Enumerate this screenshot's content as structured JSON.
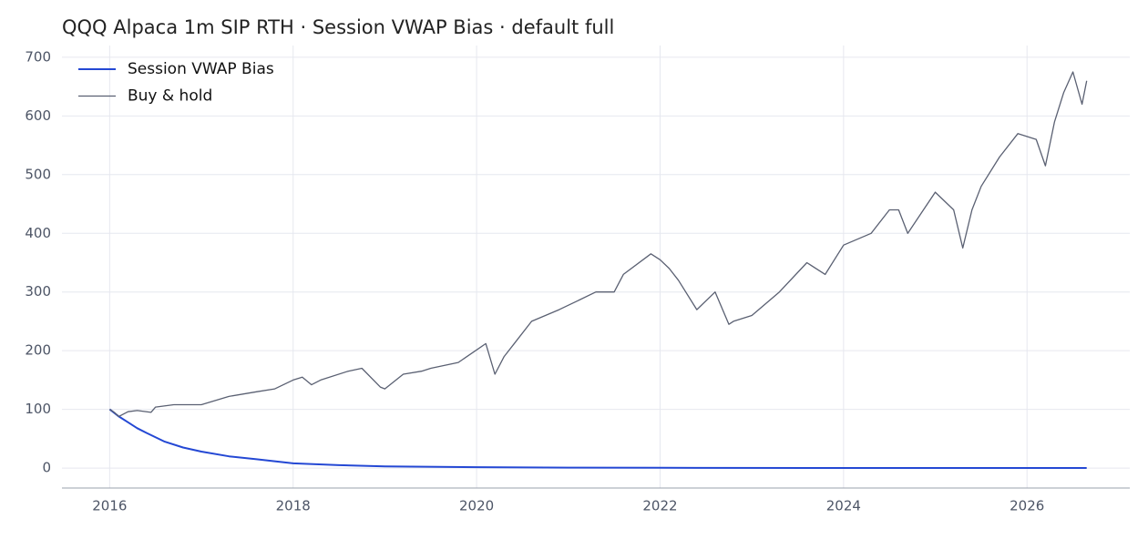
{
  "chart_data": {
    "type": "line",
    "title": "QQQ Alpaca 1m SIP RTH · Session VWAP Bias · default full",
    "xlim": [
      2015.48,
      2027.12
    ],
    "xticks": [
      2016,
      2018,
      2020,
      2022,
      2024,
      2026
    ],
    "ylim": [
      -34,
      720
    ],
    "yticks": [
      0,
      100,
      200,
      300,
      400,
      500,
      600,
      700
    ],
    "grid": true,
    "legend": "upper-left",
    "series": [
      {
        "name": "Session VWAP Bias",
        "color": "#2448d4",
        "width": 2,
        "x": [
          2016.0,
          2016.1,
          2016.2,
          2016.3,
          2016.4,
          2016.6,
          2016.8,
          2017.0,
          2017.3,
          2017.6,
          2018.0,
          2018.5,
          2019.0,
          2020.0,
          2021.0,
          2022.0,
          2024.0,
          2026.65
        ],
        "values": [
          100,
          88,
          78,
          68,
          60,
          45,
          35,
          28,
          20,
          15,
          8,
          5,
          3,
          1.5,
          0.8,
          0.4,
          0.2,
          0.1
        ]
      },
      {
        "name": "Buy & hold",
        "color": "#5a6072",
        "width": 1.3,
        "x": [
          2016.0,
          2016.05,
          2016.1,
          2016.2,
          2016.3,
          2016.45,
          2016.5,
          2016.7,
          2017.0,
          2017.3,
          2017.6,
          2017.8,
          2018.0,
          2018.1,
          2018.2,
          2018.3,
          2018.6,
          2018.75,
          2018.95,
          2019.0,
          2019.2,
          2019.4,
          2019.5,
          2019.8,
          2020.1,
          2020.2,
          2020.3,
          2020.4,
          2020.6,
          2020.9,
          2021.1,
          2021.3,
          2021.5,
          2021.6,
          2021.9,
          2022.0,
          2022.1,
          2022.2,
          2022.4,
          2022.6,
          2022.75,
          2022.8,
          2023.0,
          2023.3,
          2023.6,
          2023.8,
          2024.0,
          2024.3,
          2024.5,
          2024.6,
          2024.7,
          2025.0,
          2025.2,
          2025.3,
          2025.4,
          2025.5,
          2025.7,
          2025.9,
          2026.1,
          2026.2,
          2026.3,
          2026.4,
          2026.5,
          2026.6,
          2026.65
        ],
        "values": [
          100,
          95,
          88,
          96,
          98,
          95,
          104,
          108,
          108,
          122,
          130,
          135,
          150,
          155,
          142,
          150,
          165,
          170,
          138,
          135,
          160,
          165,
          170,
          180,
          212,
          160,
          190,
          210,
          250,
          270,
          285,
          300,
          300,
          330,
          365,
          355,
          340,
          320,
          270,
          300,
          245,
          250,
          260,
          300,
          350,
          330,
          380,
          400,
          440,
          440,
          400,
          470,
          440,
          375,
          440,
          480,
          530,
          570,
          560,
          515,
          590,
          640,
          675,
          620,
          660
        ]
      }
    ]
  }
}
